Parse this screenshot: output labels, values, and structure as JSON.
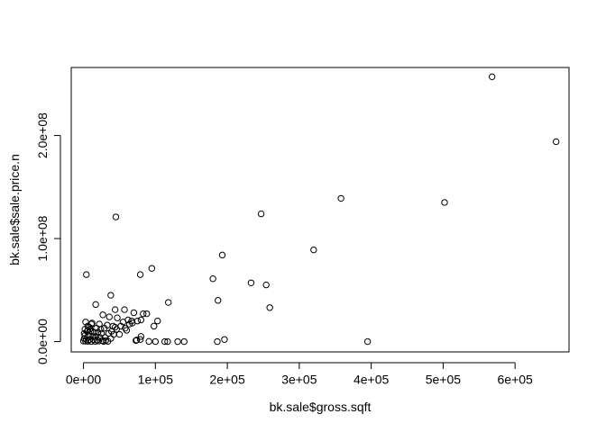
{
  "chart_data": {
    "type": "scatter",
    "title": "",
    "xlabel": "bk.sale$gross.sqft",
    "ylabel": "bk.sale$sale.price.n",
    "xlim": [
      -17000,
      675000
    ],
    "ylim": [
      -10000000,
      266000000
    ],
    "x_ticks": [
      0,
      100000,
      200000,
      300000,
      400000,
      500000,
      600000
    ],
    "x_tick_labels": [
      "0e+00",
      "1e+05",
      "2e+05",
      "3e+05",
      "4e+05",
      "5e+05",
      "6e+05"
    ],
    "y_ticks": [
      0,
      100000000,
      200000000
    ],
    "y_tick_labels": [
      "0.0e+00",
      "1.0e+08",
      "2.0e+08"
    ],
    "grid": false,
    "points": [
      [
        568000,
        257000000
      ],
      [
        657000,
        194000000
      ],
      [
        358000,
        139000000
      ],
      [
        502000,
        135000000
      ],
      [
        247000,
        124000000
      ],
      [
        45000,
        121000000
      ],
      [
        320000,
        89000000
      ],
      [
        193000,
        84000000
      ],
      [
        95000,
        71000000
      ],
      [
        4000,
        65000000
      ],
      [
        79000,
        65000000
      ],
      [
        180000,
        61000000
      ],
      [
        233000,
        57000000
      ],
      [
        254000,
        55000000
      ],
      [
        38000,
        45000000
      ],
      [
        187000,
        40000000
      ],
      [
        118000,
        38000000
      ],
      [
        17000,
        36000000
      ],
      [
        259000,
        33000000
      ],
      [
        44000,
        31000000
      ],
      [
        57000,
        31000000
      ],
      [
        70000,
        28000000
      ],
      [
        83000,
        27000000
      ],
      [
        88000,
        27000000
      ],
      [
        27000,
        26000000
      ],
      [
        36000,
        24000000
      ],
      [
        47000,
        23000000
      ],
      [
        62000,
        21000000
      ],
      [
        67000,
        20000000
      ],
      [
        75000,
        20000000
      ],
      [
        103000,
        20000000
      ],
      [
        55000,
        19000000
      ],
      [
        80000,
        21000000
      ],
      [
        3000,
        19000000
      ],
      [
        12000,
        18000000
      ],
      [
        22000,
        17000000
      ],
      [
        33000,
        16000000
      ],
      [
        41000,
        15000000
      ],
      [
        52000,
        15000000
      ],
      [
        98000,
        15000000
      ],
      [
        8000,
        14000000
      ],
      [
        18000,
        13000000
      ],
      [
        29000,
        13000000
      ],
      [
        46000,
        12000000
      ],
      [
        60000,
        11000000
      ],
      [
        5000,
        10000000
      ],
      [
        10000,
        10000000
      ],
      [
        15000,
        9000000
      ],
      [
        20000,
        9000000
      ],
      [
        25000,
        8000000
      ],
      [
        35000,
        8000000
      ],
      [
        42000,
        7000000
      ],
      [
        50000,
        7000000
      ],
      [
        2000,
        6000000
      ],
      [
        7000,
        6000000
      ],
      [
        13000,
        5000000
      ],
      [
        17000,
        5000000
      ],
      [
        23000,
        4000000
      ],
      [
        30000,
        4000000
      ],
      [
        38000,
        3000000
      ],
      [
        1000,
        3000000
      ],
      [
        4000,
        2000000
      ],
      [
        9000,
        2000000
      ],
      [
        14000,
        2000000
      ],
      [
        19000,
        1500000
      ],
      [
        26000,
        1000000
      ],
      [
        31000,
        1000000
      ],
      [
        0,
        500000
      ],
      [
        3000,
        500000
      ],
      [
        6000,
        300000
      ],
      [
        11000,
        200000
      ],
      [
        16000,
        300000
      ],
      [
        21000,
        500000
      ],
      [
        28000,
        200000
      ],
      [
        34000,
        300000
      ],
      [
        74000,
        1500000
      ],
      [
        73000,
        1000000
      ],
      [
        79000,
        2000000
      ],
      [
        80000,
        5000000
      ],
      [
        91000,
        200000
      ],
      [
        100000,
        0
      ],
      [
        113000,
        0
      ],
      [
        117000,
        0
      ],
      [
        131000,
        0
      ],
      [
        140000,
        0
      ],
      [
        186000,
        0
      ],
      [
        196000,
        2000000
      ],
      [
        395000,
        0
      ],
      [
        6000,
        11000000
      ],
      [
        9000,
        12000000
      ],
      [
        24000,
        12000000
      ],
      [
        39000,
        10000000
      ],
      [
        44000,
        14000000
      ],
      [
        58000,
        13000000
      ],
      [
        64000,
        17000000
      ],
      [
        68000,
        18000000
      ],
      [
        1000,
        8000000
      ],
      [
        2000,
        12000000
      ],
      [
        6000,
        15000000
      ],
      [
        11000,
        17000000
      ]
    ]
  }
}
